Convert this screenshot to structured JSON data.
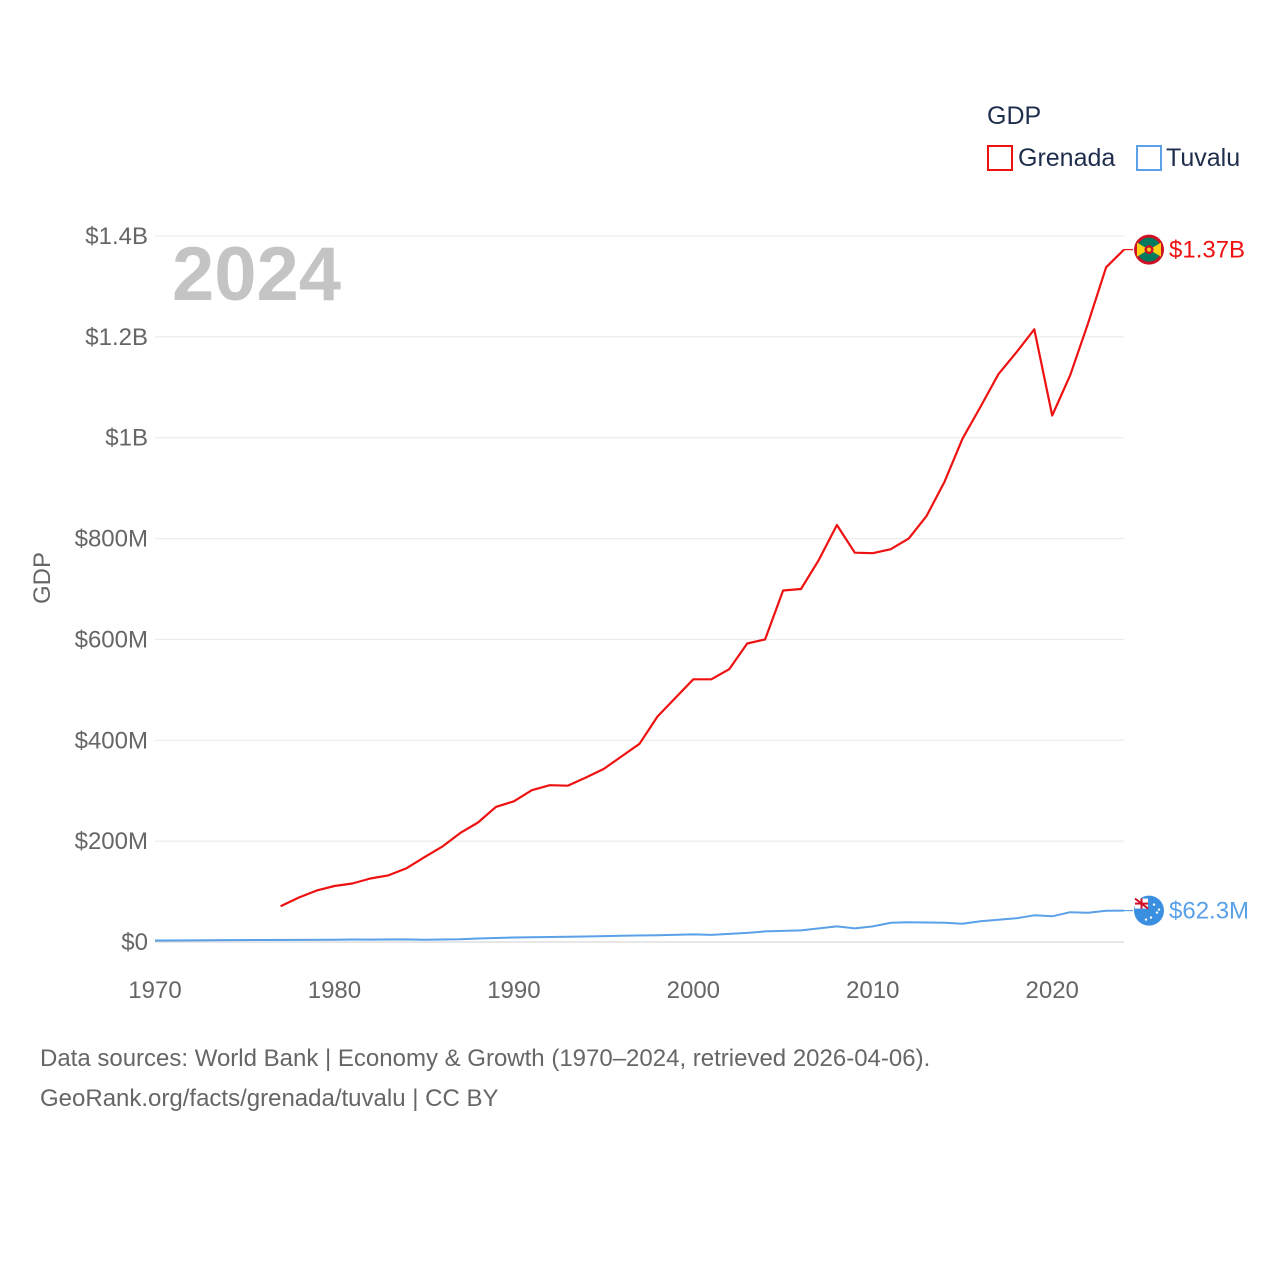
{
  "chart_data": {
    "type": "line",
    "title": "GDP",
    "year_label": "2024",
    "ylabel": "GDP",
    "xlabel": "",
    "xlim": [
      1970,
      2024
    ],
    "ylim": [
      0,
      1400000000
    ],
    "x_ticks": [
      1970,
      1980,
      1990,
      2000,
      2010,
      2020
    ],
    "x_tick_labels": [
      "1970",
      "1980",
      "1990",
      "2000",
      "2010",
      "2020"
    ],
    "y_ticks": [
      0,
      200000000,
      400000000,
      600000000,
      800000000,
      1000000000,
      1200000000,
      1400000000
    ],
    "y_tick_labels": [
      "$0",
      "$200M",
      "$400M",
      "$600M",
      "$800M",
      "$1B",
      "$1.2B",
      "$1.4B"
    ],
    "grid": true,
    "legend": {
      "title": "GDP",
      "placement": "top-right"
    },
    "series": [
      {
        "name": "Grenada",
        "color": "#ee1111",
        "end_label": "$1.37B",
        "flag": "grenada-flag",
        "x": [
          1977,
          1978,
          1979,
          1980,
          1981,
          1982,
          1983,
          1984,
          1985,
          1986,
          1987,
          1988,
          1989,
          1990,
          1991,
          1992,
          1993,
          1994,
          1995,
          1996,
          1997,
          1998,
          1999,
          2000,
          2001,
          2002,
          2003,
          2004,
          2005,
          2006,
          2007,
          2008,
          2009,
          2010,
          2011,
          2012,
          2013,
          2014,
          2015,
          2016,
          2017,
          2018,
          2019,
          2020,
          2021,
          2022,
          2023,
          2024
        ],
        "values": [
          71000000,
          88000000,
          102000000,
          111000000,
          116000000,
          126000000,
          132000000,
          146000000,
          168000000,
          189000000,
          216000000,
          237000000,
          268000000,
          279000000,
          301000000,
          311000000,
          310000000,
          326000000,
          343000000,
          368000000,
          393000000,
          447000000,
          484000000,
          521000000,
          521000000,
          541000000,
          592000000,
          600000000,
          697000000,
          700000000,
          758000000,
          827000000,
          772000000,
          771000000,
          779000000,
          800000000,
          845000000,
          913000000,
          998000000,
          1061000000,
          1126000000,
          1169000000,
          1215000000,
          1044000000,
          1124000000,
          1227000000,
          1338000000,
          1373000000
        ]
      },
      {
        "name": "Tuvalu",
        "color": "#5aa1e8",
        "end_label": "$62.3M",
        "flag": "tuvalu-flag",
        "x": [
          1970,
          1972,
          1974,
          1976,
          1978,
          1980,
          1981,
          1982,
          1984,
          1985,
          1987,
          1988,
          1990,
          1992,
          1993,
          1994,
          1996,
          1998,
          2000,
          2001,
          2002,
          2003,
          2004,
          2006,
          2008,
          2009,
          2010,
          2011,
          2012,
          2014,
          2015,
          2016,
          2017,
          2018,
          2019,
          2020,
          2021,
          2022,
          2023,
          2024
        ],
        "values": [
          3000000,
          3200000,
          3800000,
          4000000,
          4200000,
          4600000,
          5000000,
          4800000,
          5200000,
          4500000,
          5500000,
          7000000,
          9000000,
          10000000,
          10500000,
          11000000,
          12500000,
          13500000,
          15000000,
          14000000,
          16000000,
          18000000,
          21000000,
          23000000,
          31000000,
          27000000,
          31000000,
          38000000,
          39000000,
          38000000,
          36000000,
          41000000,
          44000000,
          47000000,
          53000000,
          51000000,
          59000000,
          58000000,
          62000000,
          62300000
        ]
      }
    ]
  },
  "footer": {
    "line1": "Data sources: World Bank | Economy & Growth (1970–2024, retrieved 2026-04-06).",
    "line2": "GeoRank.org/facts/grenada/tuvalu | CC BY"
  }
}
